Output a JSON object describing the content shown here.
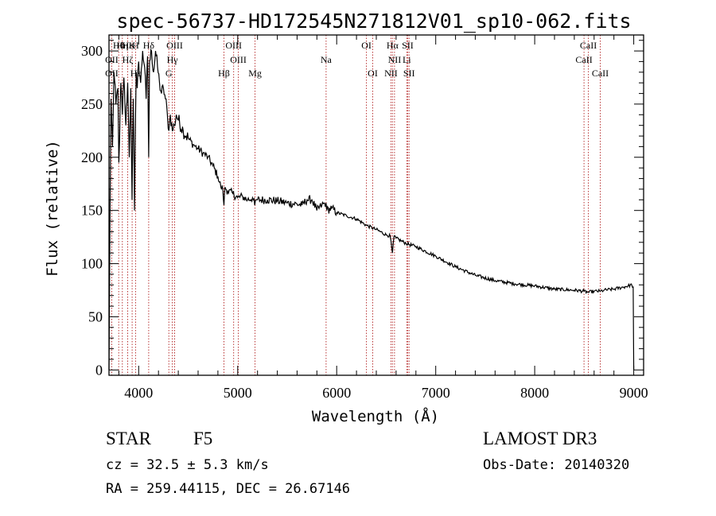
{
  "chart_data": {
    "type": "line",
    "title": "spec-56737-HD172545N271812V01_sp10-062.fits",
    "xlabel": "Wavelength (Å)",
    "ylabel": "Flux (relative)",
    "xlim": [
      3700,
      9100
    ],
    "ylim": [
      -5,
      315
    ],
    "xticks": [
      4000,
      5000,
      6000,
      7000,
      8000,
      9000
    ],
    "xtick_labels": [
      "4000",
      "5000",
      "6000",
      "7000",
      "8000",
      "9000"
    ],
    "yticks": [
      0,
      50,
      100,
      150,
      200,
      250,
      300
    ],
    "ytick_labels": [
      "0",
      "50",
      "100",
      "150",
      "200",
      "250",
      "300"
    ],
    "series": [
      {
        "name": "flux",
        "color": "#000000",
        "x": [
          3700,
          3710,
          3720,
          3735,
          3750,
          3770,
          3790,
          3800,
          3820,
          3835,
          3850,
          3870,
          3889,
          3905,
          3920,
          3933,
          3945,
          3958,
          3968,
          3975,
          3985,
          4000,
          4020,
          4040,
          4060,
          4075,
          4090,
          4101,
          4110,
          4130,
          4150,
          4170,
          4190,
          4210,
          4230,
          4250,
          4270,
          4290,
          4305,
          4320,
          4340,
          4360,
          4380,
          4400,
          4450,
          4500,
          4550,
          4600,
          4650,
          4700,
          4750,
          4800,
          4830,
          4850,
          4861,
          4872,
          4900,
          4950,
          5000,
          5050,
          5100,
          5150,
          5172,
          5185,
          5200,
          5300,
          5400,
          5500,
          5600,
          5650,
          5700,
          5750,
          5800,
          5850,
          5893,
          5900,
          5950,
          6000,
          6100,
          6200,
          6300,
          6400,
          6500,
          6540,
          6563,
          6580,
          6600,
          6700,
          6800,
          7000,
          7200,
          7400,
          7600,
          7800,
          8000,
          8200,
          8400,
          8498,
          8542,
          8600,
          8662,
          8700,
          8800,
          8900,
          8980,
          8995,
          9000
        ],
        "values": [
          0,
          140,
          255,
          210,
          280,
          250,
          265,
          195,
          270,
          240,
          275,
          230,
          270,
          200,
          265,
          160,
          255,
          150,
          240,
          280,
          265,
          290,
          270,
          300,
          285,
          255,
          295,
          200,
          290,
          300,
          280,
          300,
          285,
          270,
          260,
          265,
          255,
          240,
          225,
          240,
          225,
          230,
          240,
          235,
          225,
          218,
          212,
          208,
          204,
          200,
          192,
          182,
          172,
          170,
          155,
          172,
          168,
          166,
          162,
          163,
          160,
          162,
          155,
          160,
          160,
          160,
          159,
          157,
          156,
          155,
          160,
          160,
          150,
          155,
          157,
          150,
          152,
          148,
          145,
          142,
          136,
          132,
          127,
          126,
          110,
          126,
          124,
          119,
          116,
          107,
          97,
          89,
          84,
          81,
          79,
          76,
          75,
          74,
          73,
          74,
          74,
          75,
          76,
          78,
          80,
          78,
          0
        ]
      }
    ],
    "annotations": [
      {
        "label": "Hθ",
        "x": 3798,
        "row": 1
      },
      {
        "label": "Hη",
        "x": 3835,
        "row": 1
      },
      {
        "label": "Hε",
        "x": 3889,
        "row": 1
      },
      {
        "label": "K",
        "x": 3934,
        "row": 1
      },
      {
        "label": "H",
        "x": 3968,
        "row": 1
      },
      {
        "label": "Hδ",
        "x": 4101,
        "row": 1
      },
      {
        "label": "OIII",
        "x": 4363,
        "row": 1
      },
      {
        "label": "OIII",
        "x": 4959,
        "row": 1
      },
      {
        "label": "OI",
        "x": 6300,
        "row": 1
      },
      {
        "label": "Hα",
        "x": 6563,
        "row": 1
      },
      {
        "label": "SII",
        "x": 6717,
        "row": 1
      },
      {
        "label": "CaII",
        "x": 8542,
        "row": 1
      },
      {
        "label": "OII",
        "x": 3727,
        "row": 2
      },
      {
        "label": "Hζ",
        "x": 3889,
        "row": 2
      },
      {
        "label": "Hγ",
        "x": 4340,
        "row": 2
      },
      {
        "label": "OIII",
        "x": 5007,
        "row": 2
      },
      {
        "label": "Na",
        "x": 5893,
        "row": 2
      },
      {
        "label": "NII",
        "x": 6584,
        "row": 2
      },
      {
        "label": "Li",
        "x": 6708,
        "row": 2
      },
      {
        "label": "CaII",
        "x": 8498,
        "row": 2
      },
      {
        "label": "OII",
        "x": 3727,
        "row": 3
      },
      {
        "label": "Hε",
        "x": 3970,
        "row": 3
      },
      {
        "label": "G",
        "x": 4304,
        "row": 3
      },
      {
        "label": "Hβ",
        "x": 4861,
        "row": 3
      },
      {
        "label": "Mg",
        "x": 5175,
        "row": 3
      },
      {
        "label": "OI",
        "x": 6364,
        "row": 3
      },
      {
        "label": "NII",
        "x": 6548,
        "row": 3
      },
      {
        "label": "SII",
        "x": 6731,
        "row": 3
      },
      {
        "label": "CaII",
        "x": 8662,
        "row": 3
      }
    ],
    "line_markers": [
      3727,
      3798,
      3835,
      3889,
      3934,
      3968,
      4101,
      4304,
      4340,
      4363,
      4861,
      4959,
      5007,
      5175,
      5893,
      6300,
      6364,
      6548,
      6563,
      6584,
      6708,
      6717,
      6731,
      8498,
      8542,
      8662
    ],
    "marker_color": "#b22222",
    "grid": false,
    "legend": "none"
  },
  "info": {
    "object_class": "STAR",
    "subclass": "F5",
    "survey": "LAMOST DR3",
    "redshift": "cz = 32.5 ± 5.3 km/s",
    "obs_date": "Obs-Date: 20140320",
    "coords": "RA = 259.44115, DEC =  26.67146"
  }
}
